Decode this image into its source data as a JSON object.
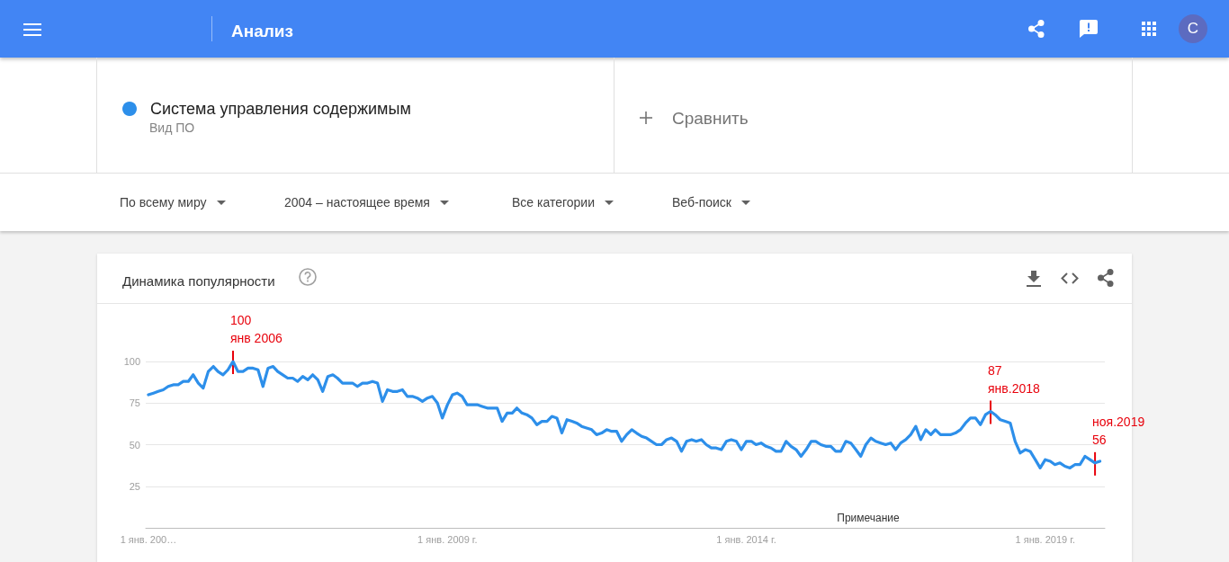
{
  "chart_data": {
    "type": "line",
    "title": "Динамика популярности",
    "x": [
      "2004-01",
      "2004-02",
      "2004-03",
      "2004-04",
      "2004-05",
      "2004-06",
      "2004-07",
      "2004-08",
      "2004-09",
      "2004-10",
      "2004-11",
      "2004-12",
      "2005-01",
      "2005-02",
      "2005-03",
      "2005-04",
      "2005-05",
      "2005-06",
      "2005-07",
      "2005-08",
      "2005-09",
      "2005-10",
      "2005-11",
      "2005-12",
      "2006-01",
      "2006-02",
      "2006-03",
      "2006-04",
      "2006-05",
      "2006-06",
      "2006-07",
      "2006-08",
      "2006-09",
      "2006-10",
      "2006-11",
      "2006-12",
      "2007-01",
      "2007-02",
      "2007-03",
      "2007-04",
      "2007-05",
      "2007-06",
      "2007-07",
      "2007-08",
      "2007-09",
      "2007-10",
      "2007-11",
      "2007-12",
      "2008-01",
      "2008-02",
      "2008-03",
      "2008-04",
      "2008-05",
      "2008-06",
      "2008-07",
      "2008-08",
      "2008-09",
      "2008-10",
      "2008-11",
      "2008-12",
      "2009-01",
      "2009-02",
      "2009-03",
      "2009-04",
      "2009-05",
      "2009-06",
      "2009-07",
      "2009-08",
      "2009-09",
      "2009-10",
      "2009-11",
      "2009-12",
      "2010-01",
      "2010-02",
      "2010-03",
      "2010-04",
      "2010-05",
      "2010-06",
      "2010-07",
      "2010-08",
      "2010-09",
      "2010-10",
      "2010-11",
      "2010-12",
      "2011-01",
      "2011-02",
      "2011-03",
      "2011-04",
      "2011-05",
      "2011-06",
      "2011-07",
      "2011-08",
      "2011-09",
      "2011-10",
      "2011-11",
      "2011-12",
      "2012-01",
      "2012-02",
      "2012-03",
      "2012-04",
      "2012-05",
      "2012-06",
      "2012-07",
      "2012-08",
      "2012-09",
      "2012-10",
      "2012-11",
      "2012-12",
      "2013-01",
      "2013-02",
      "2013-03",
      "2013-04",
      "2013-05",
      "2013-06",
      "2013-07",
      "2013-08",
      "2013-09",
      "2013-10",
      "2013-11",
      "2013-12",
      "2014-01",
      "2014-02",
      "2014-03",
      "2014-04",
      "2014-05",
      "2014-06",
      "2014-07",
      "2014-08",
      "2014-09",
      "2014-10",
      "2014-11",
      "2014-12",
      "2015-01",
      "2015-02",
      "2015-03",
      "2015-04",
      "2015-05",
      "2015-06",
      "2015-07",
      "2015-08",
      "2015-09",
      "2015-10",
      "2015-11",
      "2015-12",
      "2016-01",
      "2016-02",
      "2016-03",
      "2016-04",
      "2016-05",
      "2016-06",
      "2016-07",
      "2016-08",
      "2016-09",
      "2016-10",
      "2016-11",
      "2016-12",
      "2017-01",
      "2017-02",
      "2017-03",
      "2017-04",
      "2017-05",
      "2017-06",
      "2017-07",
      "2017-08",
      "2017-09",
      "2017-10",
      "2017-11",
      "2017-12",
      "2018-01",
      "2018-02",
      "2018-03",
      "2018-04",
      "2018-05",
      "2018-06",
      "2018-07",
      "2018-08",
      "2018-09",
      "2018-10",
      "2018-11",
      "2018-12",
      "2019-01",
      "2019-02",
      "2019-03",
      "2019-04",
      "2019-05",
      "2019-06",
      "2019-07",
      "2019-08",
      "2019-09",
      "2019-10",
      "2019-11",
      "2019-12"
    ],
    "series": [
      {
        "name": "Система управления содержимым",
        "color": "#2d8fea",
        "values": [
          80,
          81,
          82,
          83,
          85,
          86,
          86,
          88,
          88,
          92,
          87,
          84,
          94,
          97,
          94,
          92,
          95,
          100,
          94,
          94,
          96,
          96,
          95,
          85,
          96,
          97,
          94,
          92,
          90,
          90,
          88,
          91,
          89,
          92,
          89,
          82,
          91,
          92,
          90,
          87,
          87,
          87,
          85,
          87,
          87,
          88,
          87,
          76,
          83,
          82,
          82,
          83,
          79,
          79,
          78,
          76,
          78,
          79,
          75,
          66,
          74,
          80,
          81,
          79,
          74,
          74,
          74,
          73,
          72,
          72,
          72,
          64,
          69,
          69,
          72,
          69,
          68,
          66,
          62,
          64,
          64,
          67,
          66,
          57,
          65,
          64,
          63,
          61,
          60,
          59,
          56,
          57,
          59,
          58,
          58,
          52,
          56,
          59,
          57,
          55,
          54,
          52,
          50,
          50,
          53,
          54,
          52,
          46,
          52,
          53,
          52,
          53,
          50,
          48,
          48,
          47,
          52,
          53,
          52,
          47,
          52,
          52,
          50,
          51,
          49,
          48,
          46,
          46,
          52,
          49,
          47,
          43,
          47,
          52,
          52,
          50,
          49,
          49,
          46,
          46,
          52,
          51,
          47,
          43,
          50,
          54,
          52,
          51,
          50,
          51,
          47,
          51,
          53,
          56,
          61,
          53,
          59,
          56,
          59,
          56,
          56,
          56,
          57,
          59,
          63,
          66,
          66,
          62,
          68,
          70,
          68,
          65,
          64,
          63,
          52,
          45,
          47,
          46,
          41,
          36,
          41,
          40,
          38,
          39,
          37,
          36,
          38,
          38,
          43,
          41,
          39,
          40
        ]
      }
    ],
    "xlim": [
      "2003-12-16",
      "2019-12-31"
    ],
    "xticks": [
      {
        "value": "2004-01-01",
        "label": "1 янв. 200…"
      },
      {
        "value": "2009-01-01",
        "label": "1 янв. 2009 г."
      },
      {
        "value": "2014-01-01",
        "label": "1 янв. 2014 г."
      },
      {
        "value": "2019-01-01",
        "label": "1 янв. 2019 г."
      }
    ],
    "ylim": [
      0,
      100
    ],
    "yticks": [
      25,
      50,
      75,
      100
    ],
    "grid": "y",
    "legend": "top left",
    "annotations": [
      "Анализ",
      "С",
      "Вид ПО",
      "Сравнить",
      "По всему миру",
      "2004 – настоящее время",
      "Все категории",
      "Веб-поиск",
      "Примечание",
      {
        "text": "100\nянв 2006",
        "x": "2005-06",
        "y": 100
      },
      {
        "text": "87\nянв.2018",
        "x": "2018-02",
        "y": 70
      },
      {
        "text": "ноя.2019\n56",
        "x": "2019-11",
        "y": 39
      }
    ]
  }
}
